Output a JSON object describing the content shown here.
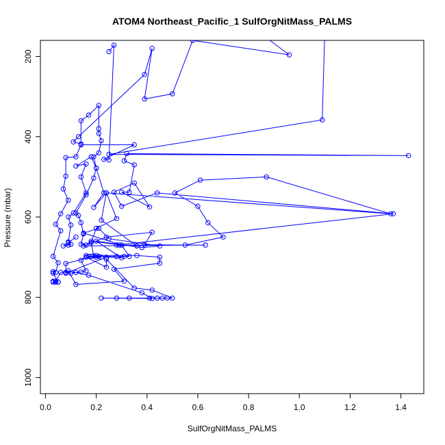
{
  "chart_data": {
    "type": "line",
    "title": "ATOM4 Northeast_Pacific_1 SulfOrgNitMass_PALMS",
    "xlabel": "SulfOrgNitMass_PALMS",
    "ylabel": "Pressure (mbar)",
    "xlim": [
      -0.02,
      1.49
    ],
    "ylim": [
      1040,
      160
    ],
    "y_reversed": true,
    "x_ticks": [
      "0.0",
      "0.2",
      "0.4",
      "0.6",
      "0.8",
      "1.0",
      "1.2",
      "1.4"
    ],
    "y_ticks": [
      "200",
      "400",
      "600",
      "800",
      "1000"
    ],
    "grid": false,
    "marker": "open-circle",
    "color": "#0000ff",
    "series": [
      {
        "points": [
          [
            0.25,
            188
          ],
          [
            0.27,
            172
          ],
          [
            0.25,
            458
          ],
          [
            0.23,
            456
          ],
          [
            0.35,
            420
          ],
          [
            0.14,
            420
          ],
          [
            0.12,
            450
          ],
          [
            0.08,
            452
          ],
          [
            0.08,
            498
          ],
          [
            0.07,
            530
          ],
          [
            0.09,
            558
          ],
          [
            0.06,
            592
          ],
          [
            0.04,
            618
          ],
          [
            0.06,
            634
          ],
          [
            0.03,
            698
          ],
          [
            0.05,
            714
          ],
          [
            0.04,
            738
          ],
          [
            0.03,
            736
          ],
          [
            0.03,
            740
          ],
          [
            0.05,
            762
          ],
          [
            0.03,
            760
          ],
          [
            0.03,
            762
          ],
          [
            0.04,
            762
          ],
          [
            0.05,
            762
          ],
          [
            0.04,
            760
          ],
          [
            0.06,
            738
          ],
          [
            0.08,
            738
          ],
          [
            0.1,
            740
          ],
          [
            0.12,
            738
          ],
          [
            0.14,
            737
          ],
          [
            0.16,
            734
          ],
          [
            0.14,
            708
          ],
          [
            0.16,
            696
          ],
          [
            0.17,
            698
          ],
          [
            0.18,
            698
          ],
          [
            0.21,
            698
          ],
          [
            0.28,
            698
          ],
          [
            0.31,
            698
          ],
          [
            0.33,
            698
          ],
          [
            0.3,
            670
          ],
          [
            0.18,
            660
          ],
          [
            0.16,
            670
          ],
          [
            0.14,
            668
          ],
          [
            0.15,
            642
          ],
          [
            0.14,
            614
          ],
          [
            0.13,
            596
          ],
          [
            0.12,
            590
          ],
          [
            0.16,
            545
          ],
          [
            0.19,
            503
          ],
          [
            0.2,
            478
          ],
          [
            0.19,
            450
          ],
          [
            0.21,
            440
          ],
          [
            0.22,
            410
          ],
          [
            0.21,
            392
          ],
          [
            0.21,
            380
          ],
          [
            0.21,
            322
          ],
          [
            0.17,
            346
          ],
          [
            0.14,
            360
          ],
          [
            0.14,
            418
          ],
          [
            0.11,
            413
          ],
          [
            0.13,
            400
          ],
          [
            0.39,
            245
          ],
          [
            0.42,
            180
          ],
          [
            0.39,
            306
          ],
          [
            0.5,
            293
          ],
          [
            0.58,
            160
          ],
          [
            0.96,
            196
          ],
          [
            0.8,
            120
          ],
          [
            1.1,
            140
          ],
          [
            1.09,
            358
          ],
          [
            0.25,
            444
          ],
          [
            1.43,
            447
          ],
          [
            0.32,
            442
          ],
          [
            0.31,
            460
          ],
          [
            0.35,
            470
          ],
          [
            0.33,
            538
          ],
          [
            0.3,
            538
          ],
          [
            0.41,
            575
          ],
          [
            0.35,
            515
          ],
          [
            0.27,
            538
          ],
          [
            0.3,
            573
          ],
          [
            0.44,
            540
          ],
          [
            1.37,
            592
          ],
          [
            0.28,
            670
          ],
          [
            0.63,
            670
          ],
          [
            0.15,
            672
          ],
          [
            0.24,
            650
          ],
          [
            0.42,
            638
          ],
          [
            0.39,
            669
          ],
          [
            0.55,
            670
          ],
          [
            0.7,
            650
          ],
          [
            0.64,
            614
          ],
          [
            0.6,
            573
          ],
          [
            0.51,
            540
          ],
          [
            0.61,
            508
          ],
          [
            0.87,
            500
          ],
          [
            1.36,
            592
          ],
          [
            0.24,
            540
          ],
          [
            0.22,
            608
          ],
          [
            0.36,
            672
          ],
          [
            0.29,
            670
          ],
          [
            0.3,
            670
          ],
          [
            0.15,
            640
          ],
          [
            0.21,
            628
          ],
          [
            0.25,
            654
          ],
          [
            0.45,
            672
          ],
          [
            0.38,
            676
          ],
          [
            0.2,
            660
          ],
          [
            0.3,
            702
          ],
          [
            0.24,
            700
          ],
          [
            0.08,
            740
          ],
          [
            0.08,
            716
          ],
          [
            0.2,
            696
          ],
          [
            0.36,
            696
          ],
          [
            0.45,
            700
          ],
          [
            0.45,
            715
          ],
          [
            0.27,
            730
          ],
          [
            0.31,
            760
          ],
          [
            0.12,
            768
          ],
          [
            0.09,
            734
          ],
          [
            0.17,
            745
          ],
          [
            0.38,
            789
          ],
          [
            0.42,
            803
          ],
          [
            0.22,
            802
          ],
          [
            0.28,
            802
          ],
          [
            0.33,
            802
          ],
          [
            0.41,
            802
          ],
          [
            0.44,
            802
          ],
          [
            0.46,
            802
          ],
          [
            0.48,
            802
          ],
          [
            0.5,
            802
          ],
          [
            0.42,
            782
          ],
          [
            0.35,
            777
          ],
          [
            0.24,
            705
          ],
          [
            0.24,
            725
          ],
          [
            0.16,
            700
          ],
          [
            0.2,
            700
          ],
          [
            0.22,
            700
          ],
          [
            0.19,
            697
          ],
          [
            0.18,
            664
          ],
          [
            0.2,
            628
          ],
          [
            0.28,
            604
          ],
          [
            0.24,
            540
          ],
          [
            0.19,
            576
          ],
          [
            0.23,
            540
          ],
          [
            0.2,
            478
          ],
          [
            0.18,
            450
          ],
          [
            0.12,
            473
          ],
          [
            0.16,
            468
          ],
          [
            0.14,
            500
          ],
          [
            0.16,
            540
          ],
          [
            0.11,
            590
          ],
          [
            0.09,
            600
          ],
          [
            0.1,
            620
          ],
          [
            0.09,
            662
          ],
          [
            0.1,
            668
          ],
          [
            0.09,
            670
          ],
          [
            0.07,
            672
          ],
          [
            0.09,
            664
          ],
          [
            0.12,
            650
          ]
        ]
      }
    ]
  }
}
